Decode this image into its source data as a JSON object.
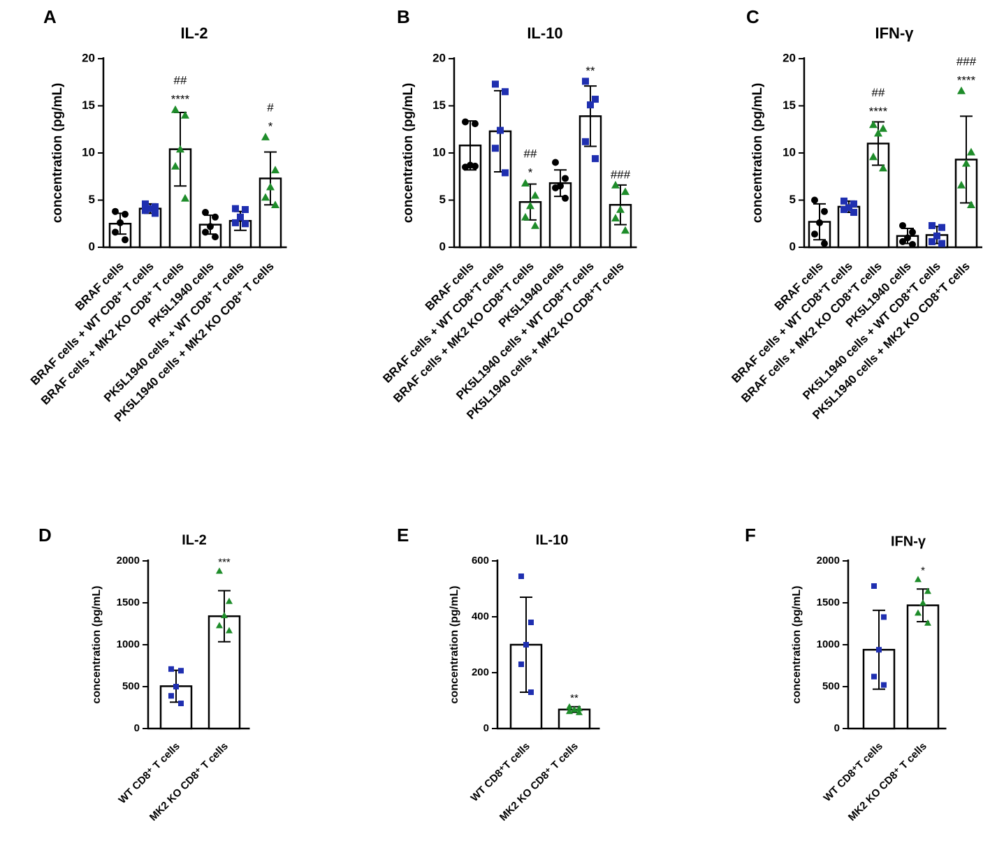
{
  "colors": {
    "black": "#000000",
    "blue": "#1f2fb0",
    "green": "#1e8c2a"
  },
  "chart_data": [
    {
      "panel": "A",
      "title": "IL-2",
      "type": "bar",
      "ylabel": "concentration (pg/mL)",
      "ylim": [
        0,
        20
      ],
      "yticks": [
        "0",
        "5",
        "10",
        "15",
        "20"
      ],
      "categories": [
        "BRAF cells",
        "BRAF cells + WT CD8",
        "BRAF cells + MK2 KO CD8",
        "PK5L1940 cells",
        "PK5L1940 cells + WT CD8",
        "PK5L1940 cells + MK2 KO CD8"
      ],
      "cat_suffix": [
        "",
        "⁺ T cells",
        "⁺ T cells",
        "",
        "⁺ T cells",
        "⁺ T cells"
      ],
      "values": [
        2.5,
        4.1,
        10.4,
        2.4,
        2.8,
        7.3
      ],
      "sd": [
        1.1,
        0.5,
        3.9,
        1.0,
        1.0,
        2.8
      ],
      "points": [
        [
          3.8,
          3.5,
          2.6,
          1.6,
          0.8
        ],
        [
          4.6,
          4.3,
          4.1,
          3.9,
          3.6
        ],
        [
          14.6,
          14.0,
          10.4,
          8.6,
          5.2
        ],
        [
          3.7,
          3.2,
          2.2,
          1.6,
          1.1
        ],
        [
          4.1,
          4.0,
          3.2,
          2.6,
          2.5
        ],
        [
          11.7,
          8.2,
          6.4,
          5.3,
          4.5
        ]
      ],
      "markers": [
        "circle",
        "square",
        "triangle",
        "circle",
        "square",
        "triangle"
      ],
      "point_colors": [
        "black",
        "blue",
        "green",
        "black",
        "blue",
        "green"
      ],
      "sig": [
        [],
        [],
        [
          "##",
          "****"
        ],
        [],
        [],
        [
          "#",
          "*"
        ]
      ]
    },
    {
      "panel": "B",
      "title": "IL-10",
      "type": "bar",
      "ylabel": "concentration (pg/mL)",
      "ylim": [
        0,
        20
      ],
      "yticks": [
        "0",
        "5",
        "10",
        "15",
        "20"
      ],
      "categories": [
        "BRAF cells",
        "BRAF cells + WT CD8",
        "BRAF cells + MK2 KO CD8",
        "PK5L1940 cells",
        "PK5L1940 cells + WT CD8",
        "PK5L1940 cells + MK2 KO CD8"
      ],
      "cat_suffix": [
        "",
        "⁺T cells",
        "⁺T cells",
        "",
        "⁺T cells",
        "⁺T cells"
      ],
      "values": [
        10.8,
        12.3,
        4.8,
        6.8,
        13.9,
        4.5
      ],
      "sd": [
        2.6,
        4.3,
        1.9,
        1.4,
        3.2,
        2.1
      ],
      "points": [
        [
          13.3,
          13.1,
          8.7,
          8.5,
          8.6
        ],
        [
          17.3,
          16.5,
          12.4,
          10.5,
          7.9
        ],
        [
          6.8,
          5.5,
          4.4,
          3.2,
          2.3
        ],
        [
          9.0,
          7.3,
          6.5,
          6.3,
          5.2
        ],
        [
          17.6,
          15.7,
          15.1,
          11.2,
          9.4
        ],
        [
          6.6,
          5.9,
          4.0,
          3.1,
          1.8
        ]
      ],
      "markers": [
        "circle",
        "square",
        "triangle",
        "circle",
        "square",
        "triangle"
      ],
      "point_colors": [
        "black",
        "blue",
        "green",
        "black",
        "blue",
        "green"
      ],
      "sig": [
        [],
        [],
        [
          "##",
          "*"
        ],
        [],
        [
          "**"
        ],
        [
          "###"
        ]
      ]
    },
    {
      "panel": "C",
      "title": "IFN-γ",
      "type": "bar",
      "ylabel": "concentration (pg/mL)",
      "ylim": [
        0,
        20
      ],
      "yticks": [
        "0",
        "5",
        "10",
        "15",
        "20"
      ],
      "categories": [
        "BRAF cells",
        "BRAF cells + WT CD8",
        "BRAF cells + MK2 KO CD8",
        "PK5L1940 cells",
        "PK5L1940 cells + WT CD8",
        "PK5L1940 cells + MK2 KO CD8"
      ],
      "cat_suffix": [
        "",
        "⁺T cells",
        "⁺T cells",
        "",
        "⁺T cells",
        "⁺T cells"
      ],
      "values": [
        2.7,
        4.3,
        11.0,
        1.2,
        1.3,
        9.3
      ],
      "sd": [
        1.9,
        0.6,
        2.3,
        0.8,
        0.9,
        4.6
      ],
      "points": [
        [
          5.0,
          3.8,
          2.6,
          1.4,
          0.4
        ],
        [
          4.9,
          4.6,
          4.2,
          4.0,
          3.7
        ],
        [
          13.0,
          12.6,
          12.1,
          9.6,
          8.4
        ],
        [
          2.3,
          1.6,
          1.0,
          0.6,
          0.3
        ],
        [
          2.3,
          2.1,
          1.2,
          0.6,
          0.4
        ],
        [
          16.6,
          10.1,
          8.9,
          6.6,
          4.5
        ]
      ],
      "markers": [
        "circle",
        "square",
        "triangle",
        "circle",
        "square",
        "triangle"
      ],
      "point_colors": [
        "black",
        "blue",
        "green",
        "black",
        "blue",
        "green"
      ],
      "sig": [
        [],
        [],
        [
          "##",
          "****"
        ],
        [],
        [],
        [
          "###",
          "****"
        ]
      ]
    },
    {
      "panel": "D",
      "title": "IL-2",
      "type": "bar",
      "ylabel": "concentration (pg/mL)",
      "ylim": [
        0,
        2000
      ],
      "yticks": [
        "0",
        "500",
        "1000",
        "1500",
        "2000"
      ],
      "categories": [
        "WT CD8",
        "MK2 KO CD8"
      ],
      "cat_suffix": [
        "⁺ T cells",
        "⁺ T cells"
      ],
      "values": [
        505,
        1340
      ],
      "sd": [
        190,
        305
      ],
      "points": [
        [
          710,
          690,
          500,
          390,
          300
        ],
        [
          1880,
          1520,
          1350,
          1230,
          1170
        ]
      ],
      "markers": [
        "square",
        "triangle"
      ],
      "point_colors": [
        "blue",
        "green"
      ],
      "sig": [
        [],
        [
          "***"
        ]
      ]
    },
    {
      "panel": "E",
      "title": "IL-10",
      "type": "bar",
      "ylabel": "concentration (pg/mL)",
      "ylim": [
        0,
        600
      ],
      "yticks": [
        "0",
        "200",
        "400",
        "600"
      ],
      "categories": [
        "WT CD8",
        "MK2 KO CD8"
      ],
      "cat_suffix": [
        "⁺T cells",
        "⁺ T cells"
      ],
      "values": [
        300,
        68
      ],
      "sd": [
        170,
        10
      ],
      "points": [
        [
          545,
          380,
          300,
          230,
          130
        ],
        [
          78,
          72,
          68,
          62,
          58
        ]
      ],
      "markers": [
        "square",
        "triangle"
      ],
      "point_colors": [
        "blue",
        "green"
      ],
      "sig": [
        [],
        [
          "**"
        ]
      ]
    },
    {
      "panel": "F",
      "title": "IFN-γ",
      "type": "bar",
      "ylabel": "concentration (pg/mL)",
      "ylim": [
        0,
        2000
      ],
      "yticks": [
        "0",
        "500",
        "1000",
        "1500",
        "2000"
      ],
      "categories": [
        "WT CD8",
        "MK2 KO CD8"
      ],
      "cat_suffix": [
        "⁺T cells",
        "⁺ T cells"
      ],
      "values": [
        940,
        1470
      ],
      "sd": [
        470,
        195
      ],
      "points": [
        [
          1700,
          1330,
          940,
          620,
          520
        ],
        [
          1780,
          1640,
          1500,
          1380,
          1260
        ]
      ],
      "markers": [
        "square",
        "triangle"
      ],
      "point_colors": [
        "blue",
        "green"
      ],
      "sig": [
        [],
        [
          "*"
        ]
      ]
    }
  ]
}
